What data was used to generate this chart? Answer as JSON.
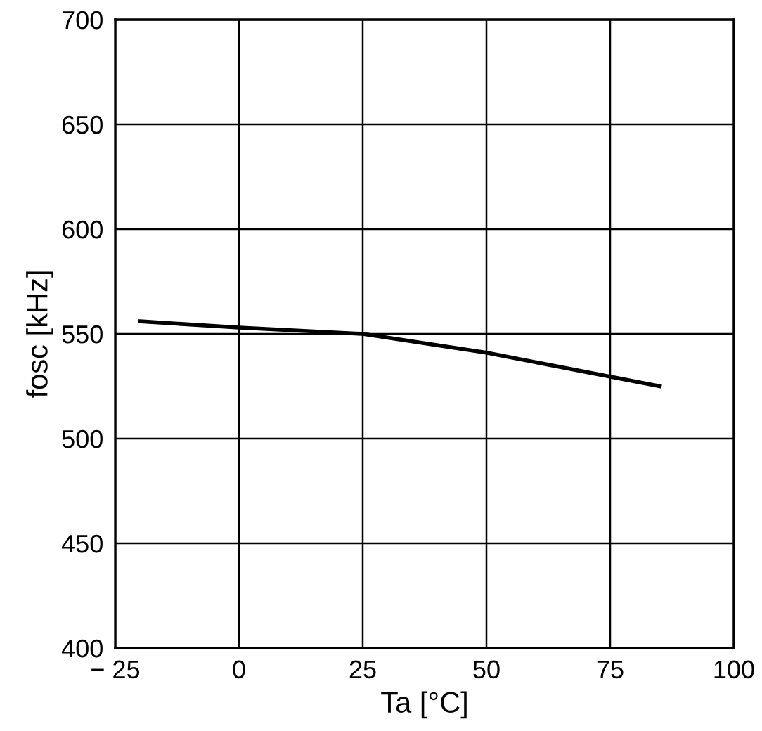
{
  "chart_data": {
    "type": "line",
    "xlabel": "Ta [°C]",
    "ylabel": "fosc [kHz]",
    "x": [
      -20,
      0,
      25,
      50,
      85
    ],
    "series": [
      {
        "color": "#000000",
        "values": [
          556,
          553,
          550,
          541,
          525
        ]
      }
    ],
    "xlim": [
      -25,
      100
    ],
    "xticks": [
      {
        "value": -25,
        "label": "− 25"
      },
      0,
      25,
      50,
      75,
      100
    ],
    "ylim": [
      400,
      700
    ],
    "yticks": [
      400,
      450,
      500,
      550,
      600,
      650,
      700
    ],
    "grid": true,
    "line_style": "solid"
  }
}
